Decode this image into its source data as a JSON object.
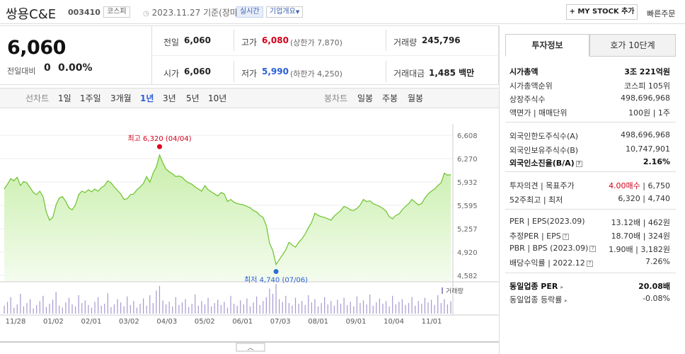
{
  "header": {
    "title": "쌍용C&E",
    "code": "003410",
    "market": "코스피",
    "basis": "2023.11.27 기준(장마감)",
    "realtime": "실시간",
    "company_info": "기업개요",
    "mystock": "+ MY STOCK 추가",
    "quick_order": "빠른주문"
  },
  "summary": {
    "price": "6,060",
    "change_label": "전일대비",
    "change_value": "0",
    "change_pct": "0.00%",
    "prev_label": "전일",
    "prev_value": "6,060",
    "open_label": "시가",
    "open_value": "6,060",
    "high_label": "고가",
    "high_value": "6,080",
    "upper_limit": "(상한가 7,870)",
    "low_label": "저가",
    "low_value": "5,990",
    "lower_limit": "(하한가 4,250)",
    "volume_label": "거래량",
    "volume_value": "245,796",
    "amount_label": "거래대금",
    "amount_value": "1,485 백만"
  },
  "tabs": {
    "line_label": "선차트",
    "periods": [
      "1일",
      "1주일",
      "3개월",
      "1년",
      "3년",
      "5년",
      "10년"
    ],
    "active": "1년",
    "candle_label": "봉차트",
    "candles": [
      "일봉",
      "주봉",
      "월봉"
    ]
  },
  "chart_data": {
    "type": "area",
    "y_ticks": [
      "6,608",
      "6,270",
      "5,932",
      "5,595",
      "5,257",
      "4,920",
      "4,582"
    ],
    "x_ticks": [
      "11/28",
      "01/02",
      "02/01",
      "03/02",
      "04/03",
      "05/02",
      "06/01",
      "07/03",
      "08/01",
      "09/01",
      "10/04",
      "11/01"
    ],
    "ylim": [
      4582,
      6608
    ],
    "high_annotation": "최고 6,320 (04/04)",
    "low_annotation": "최저 4,740 (07/06)",
    "volume_label": "거래량",
    "series": [
      {
        "values": [
          5830,
          5900,
          5980,
          5950,
          6000,
          5880,
          5940,
          5920,
          5850,
          5780,
          5750,
          5800,
          5720,
          5500,
          5380,
          5420,
          5600,
          5700,
          5720,
          5650,
          5560,
          5530,
          5600,
          5750,
          5800,
          5780,
          5820,
          5790,
          5830,
          5800,
          5850,
          5880,
          5950,
          5920,
          5860,
          5810,
          5760,
          5680,
          5690,
          5750,
          5760,
          5820,
          5860,
          5910,
          6010,
          5930,
          6060,
          6150,
          6320,
          6210,
          6120,
          6080,
          6050,
          6010,
          6020,
          6000,
          5950,
          5920,
          5900,
          5860,
          5830,
          5800,
          5880,
          5820,
          5790,
          5760,
          5730,
          5780,
          5760,
          5650,
          5680,
          5640,
          5620,
          5610,
          5600,
          5580,
          5560,
          5520,
          5500,
          5450,
          5420,
          5300,
          5050,
          4940,
          4740,
          4810,
          4880,
          4950,
          5060,
          5020,
          4990,
          5060,
          5110,
          5180,
          5270,
          5350,
          5480,
          5450,
          5430,
          5420,
          5400,
          5380,
          5440,
          5480,
          5520,
          5580,
          5560,
          5530,
          5520,
          5550,
          5600,
          5680,
          5650,
          5660,
          5620,
          5600,
          5580,
          5550,
          5510,
          5430,
          5400,
          5450,
          5470,
          5530,
          5580,
          5620,
          5680,
          5640,
          5600,
          5620,
          5700,
          5760,
          5800,
          5830,
          5880,
          5920,
          6060,
          6030,
          6040
        ]
      }
    ],
    "volume": [
      12,
      18,
      25,
      9,
      14,
      30,
      11,
      16,
      22,
      8,
      13,
      19,
      27,
      10,
      15,
      21,
      33,
      12,
      9,
      17,
      24,
      14,
      11,
      28,
      16,
      20,
      13,
      9,
      18,
      25,
      12,
      15,
      31,
      10,
      14,
      22,
      17,
      11,
      26,
      13,
      19,
      9,
      15,
      23,
      12,
      28,
      16,
      35,
      42,
      20,
      14,
      18,
      11,
      25,
      13,
      17,
      22,
      10,
      15,
      29,
      12,
      19,
      14,
      24,
      11,
      16,
      21,
      13,
      18,
      9,
      27,
      15,
      12,
      20,
      14,
      23,
      11,
      17,
      26,
      13,
      19,
      25,
      38,
      30,
      45,
      22,
      18,
      27,
      16,
      12,
      24,
      15,
      19,
      13,
      28,
      17,
      22,
      11,
      16,
      25,
      14,
      19,
      12,
      21,
      15,
      24,
      13,
      18,
      11,
      26,
      16,
      20,
      14,
      29,
      12,
      17,
      23,
      15,
      19,
      11,
      27,
      14,
      18,
      22,
      13,
      16,
      25,
      12,
      19,
      15,
      24,
      17,
      21,
      13,
      28,
      16,
      22,
      14,
      19
    ]
  },
  "invest": {
    "tab1": "투자정보",
    "tab2": "호가 10단계",
    "rows1": [
      {
        "k": "시가총액",
        "v": "3조 221억원"
      },
      {
        "k": "시가총액순위",
        "v": "코스피 105위"
      },
      {
        "k": "상장주식수",
        "v": "498,696,968"
      },
      {
        "k": "액면가 | 매매단위",
        "v": "100원 | 1주"
      }
    ],
    "rows2": [
      {
        "k": "외국인한도주식수(A)",
        "v": "498,696,968"
      },
      {
        "k": "외국인보유주식수(B)",
        "v": "10,747,901"
      },
      {
        "k": "외국인소진율(B/A)",
        "v": "2.16%"
      }
    ],
    "rows3": [
      {
        "k": "투자의견 | 목표주가",
        "v1": "4.00매수",
        "v2": " | 6,750"
      },
      {
        "k": "52주최고 | 최저",
        "v": "6,320 | 4,740"
      }
    ],
    "rows4": [
      {
        "k": "PER | EPS(2023.09)",
        "v": "13.12배 | 462원"
      },
      {
        "k": "추정PER | EPS",
        "v": "18.70배 | 324원"
      },
      {
        "k": "PBR | BPS (2023.09)",
        "v": "1.90배 | 3,182원"
      },
      {
        "k": "배당수익률 | 2022.12",
        "v": "7.26%"
      }
    ],
    "rows5": [
      {
        "k": "동일업종 PER",
        "v": "20.08배"
      },
      {
        "k": "동일업종 등락률",
        "v": "-0.08%"
      }
    ]
  },
  "colors": {
    "up": "#d0011b",
    "down": "#2a5ed6",
    "line": "#6cc22b",
    "fill": "#d9f4c4"
  }
}
